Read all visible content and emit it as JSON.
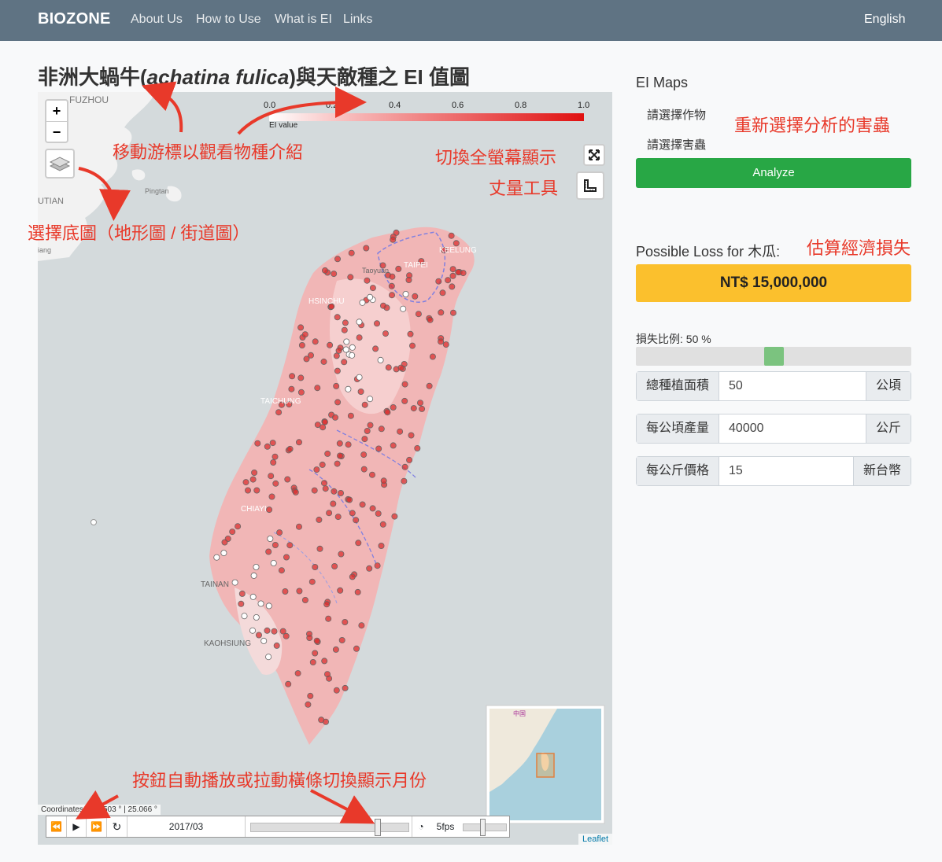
{
  "nav": {
    "brand": "BIOZONE",
    "links": [
      "About Us",
      "How to Use",
      "What is EI",
      "Links"
    ],
    "language": "English"
  },
  "page": {
    "title_pre": "非洲大蝸牛(",
    "title_species": "achatina fulica",
    "title_post": ")與天敵種之 EI 值圖"
  },
  "map": {
    "legend": {
      "ticks": [
        "0.0",
        "0.2",
        "0.4",
        "0.6",
        "0.8",
        "1.0"
      ],
      "label": "EI value"
    },
    "place_labels": [
      "FUZHOU",
      "Pingtan",
      "UTIAN",
      "iang",
      "KEELUNG",
      "TAIPEI",
      "Taoyuan",
      "HSINCHU",
      "TAICHUNG",
      "CHIAYI",
      "TAINAN",
      "KAOHSIUNG"
    ],
    "minimap_label": "中国",
    "coordinates": "Coordinates: 121.503 ° | 25.066 °",
    "attribution": "Leaflet",
    "timeline": {
      "date": "2017/03",
      "fps": "5fps"
    },
    "accent_red": "#d93030"
  },
  "annotations": {
    "species_intro": "移動游標以觀看物種介紹",
    "basemap": "選擇底圖（地形圖 / 街道圖）",
    "fullscreen": "切換全螢幕顯示",
    "measure": "丈量工具",
    "reselect": "重新選擇分析的害蟲",
    "loss": "估算經濟損失",
    "timeline": "按鈕自動播放或拉動橫條切換顯示月份"
  },
  "sidebar": {
    "ei_maps_title": "EI Maps",
    "crop_select": "請選擇作物",
    "pest_select": "請選擇害蟲",
    "analyze_button": "Analyze",
    "possible_loss_title": "Possible Loss for 木瓜:",
    "loss_value": "NT$ 15,000,000",
    "loss_ratio_label": "損失比例: 50 %",
    "loss_ratio": 0.5,
    "area_label": "總種植面積",
    "area_value": "50",
    "area_unit": "公頃",
    "yield_label": "每公頃產量",
    "yield_value": "40000",
    "yield_unit": "公斤",
    "price_label": "每公斤價格",
    "price_value": "15",
    "price_unit": "新台幣",
    "success_color": "#28a745",
    "warning_color": "#fbc02d"
  }
}
